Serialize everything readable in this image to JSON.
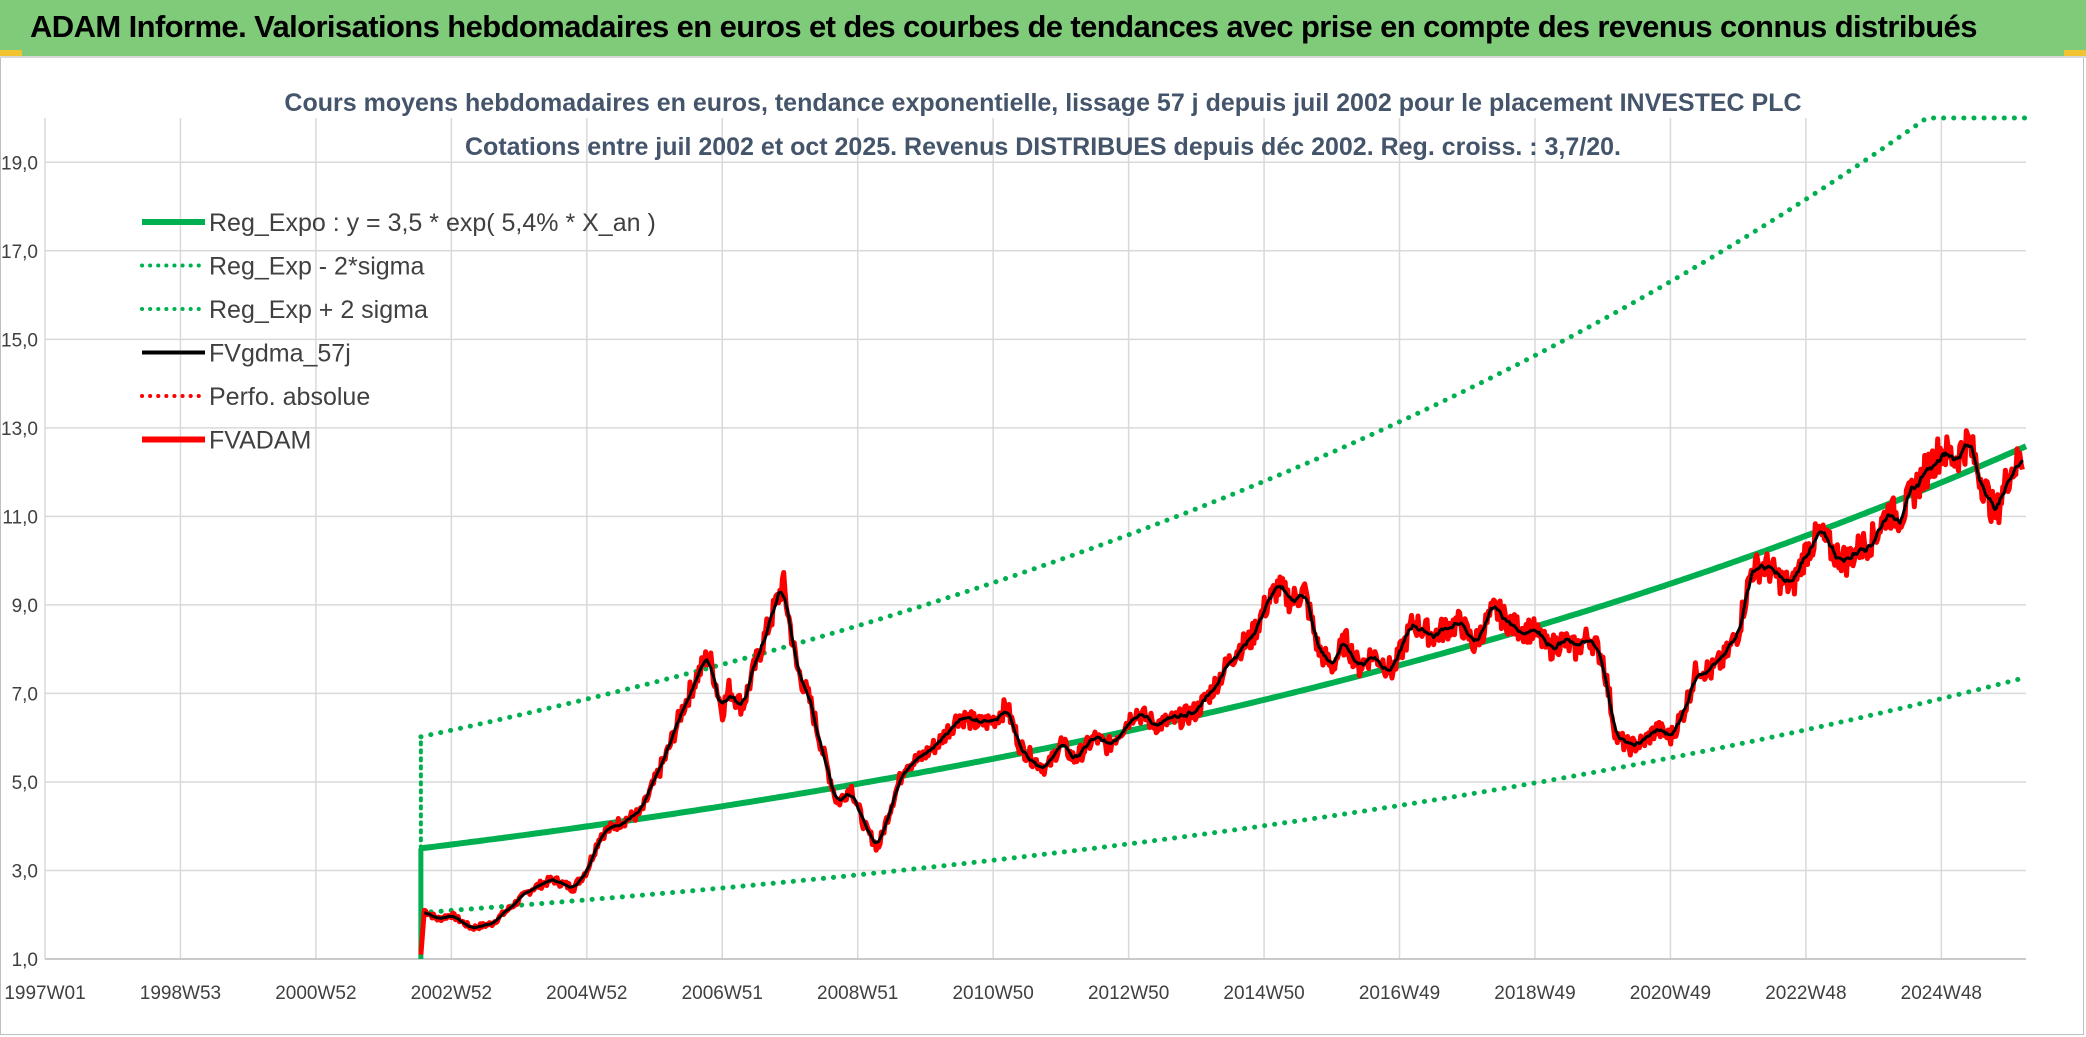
{
  "header": {
    "title": "ADAM Informe. Valorisations hebdomadaires en euros et des courbes de tendances avec prise en compte des revenus connus distribués"
  },
  "colors": {
    "header_bg": "#7fcb7a",
    "reg_expo": "#00b050",
    "fvgdma": "#000000",
    "fvadam": "#ff0000",
    "grid": "#d9d9d9"
  },
  "chart_data": {
    "type": "line",
    "title_line1": "Cours moyens hebdomadaires en euros, tendance exponentielle, lissage 57 j depuis juil 2002 pour le placement INVESTEC PLC",
    "title_line2": "Cotations entre juil 2002 et oct 2025. Revenus DISTRIBUES depuis déc 2002. Reg. croiss. : 3,7/20.",
    "xlabel": "",
    "ylabel": "",
    "xlim": [
      1997.0,
      2026.25
    ],
    "ylim": [
      1.0,
      20.0
    ],
    "y_ticks": [
      1,
      3,
      5,
      7,
      9,
      11,
      13,
      15,
      17,
      19
    ],
    "y_tick_labels": [
      "1,0",
      "3,0",
      "5,0",
      "7,0",
      "9,0",
      "11,0",
      "13,0",
      "15,0",
      "17,0",
      "19,0"
    ],
    "x_ticks": [
      1997.0,
      1999.0,
      2001.0,
      2003.0,
      2005.0,
      2007.0,
      2009.0,
      2011.0,
      2013.0,
      2015.0,
      2017.0,
      2019.0,
      2021.0,
      2023.0,
      2025.0
    ],
    "x_tick_labels": [
      "1997W01",
      "1998W53",
      "2000W52",
      "2002W52",
      "2004W52",
      "2006W51",
      "2008W51",
      "2010W50",
      "2012W50",
      "2014W50",
      "2016W49",
      "2018W49",
      "2020W49",
      "2022W48",
      "2024W48"
    ],
    "legend": [
      {
        "label": "Reg_Expo : y = 3,5 * exp( 5,4% *  X_an )",
        "style": "solid-thick",
        "color": "#00b050"
      },
      {
        "label": "Reg_Exp - 2*sigma",
        "style": "dotted",
        "color": "#00b050"
      },
      {
        "label": "Reg_Exp + 2 sigma",
        "style": "dotted",
        "color": "#00b050"
      },
      {
        "label": "FVgdma_57j",
        "style": "solid",
        "color": "#000000"
      },
      {
        "label": "Perfo. absolue",
        "style": "dotted",
        "color": "#ff0000"
      },
      {
        "label": "FVADAM",
        "style": "solid-thick",
        "color": "#ff0000"
      }
    ],
    "regression": {
      "start": 2002.55,
      "end": 2026.25,
      "a": 3.5,
      "rate": 0.054,
      "lower_factor": 0.585,
      "upper_factor": 1.72,
      "upper_cap": 20.0
    },
    "series": [
      {
        "name": "FVADAM",
        "x": [
          2002.55,
          2002.6,
          2002.8,
          2003.0,
          2003.3,
          2003.6,
          2003.9,
          2004.2,
          2004.5,
          2004.8,
          2005.0,
          2005.2,
          2005.5,
          2005.8,
          2006.0,
          2006.2,
          2006.4,
          2006.6,
          2006.8,
          2007.0,
          2007.1,
          2007.3,
          2007.5,
          2007.7,
          2007.9,
          2008.1,
          2008.3,
          2008.5,
          2008.7,
          2008.9,
          2009.1,
          2009.3,
          2009.5,
          2009.7,
          2009.9,
          2010.2,
          2010.5,
          2010.8,
          2011.0,
          2011.2,
          2011.4,
          2011.6,
          2011.8,
          2012.0,
          2012.2,
          2012.5,
          2012.7,
          2012.9,
          2013.1,
          2013.4,
          2013.7,
          2014.0,
          2014.2,
          2014.4,
          2014.6,
          2014.8,
          2015.0,
          2015.2,
          2015.4,
          2015.6,
          2015.8,
          2016.0,
          2016.2,
          2016.4,
          2016.6,
          2016.9,
          2017.2,
          2017.5,
          2017.7,
          2017.9,
          2018.1,
          2018.4,
          2018.7,
          2019.0,
          2019.2,
          2019.4,
          2019.6,
          2019.8,
          2020.0,
          2020.2,
          2020.4,
          2020.6,
          2020.8,
          2021.0,
          2021.2,
          2021.4,
          2021.6,
          2021.8,
          2022.0,
          2022.2,
          2022.4,
          2022.6,
          2022.8,
          2023.0,
          2023.2,
          2023.4,
          2023.6,
          2023.8,
          2024.0,
          2024.2,
          2024.4,
          2024.6,
          2024.8,
          2025.0,
          2025.2,
          2025.4,
          2025.6,
          2025.8,
          2026.0,
          2026.2
        ],
        "values": [
          1.1,
          2.1,
          1.9,
          2.0,
          1.7,
          1.8,
          2.2,
          2.6,
          2.8,
          2.6,
          3.0,
          3.8,
          4.1,
          4.3,
          5.0,
          5.7,
          6.6,
          7.3,
          7.9,
          6.6,
          7.1,
          6.7,
          7.7,
          8.6,
          9.5,
          7.6,
          6.8,
          5.6,
          4.5,
          4.9,
          4.0,
          3.5,
          4.5,
          5.4,
          5.5,
          5.9,
          6.5,
          6.3,
          6.4,
          6.7,
          5.8,
          5.5,
          5.3,
          5.9,
          5.5,
          6.0,
          5.8,
          6.2,
          6.6,
          6.3,
          6.4,
          6.6,
          7.0,
          7.5,
          8.0,
          8.2,
          8.9,
          9.4,
          9.1,
          9.3,
          8.0,
          7.6,
          8.2,
          7.6,
          7.9,
          7.5,
          8.6,
          8.3,
          8.5,
          8.6,
          8.1,
          8.9,
          8.5,
          8.4,
          8.0,
          8.2,
          8.0,
          8.3,
          7.8,
          6.0,
          5.8,
          5.9,
          6.2,
          6.0,
          6.6,
          7.6,
          7.5,
          7.8,
          8.4,
          9.8,
          9.9,
          9.6,
          9.4,
          10.2,
          10.6,
          10.2,
          10.0,
          10.3,
          10.5,
          11.1,
          11.0,
          11.6,
          12.1,
          12.5,
          12.3,
          12.7,
          11.8,
          11.0,
          12.0,
          12.3
        ]
      }
    ]
  }
}
